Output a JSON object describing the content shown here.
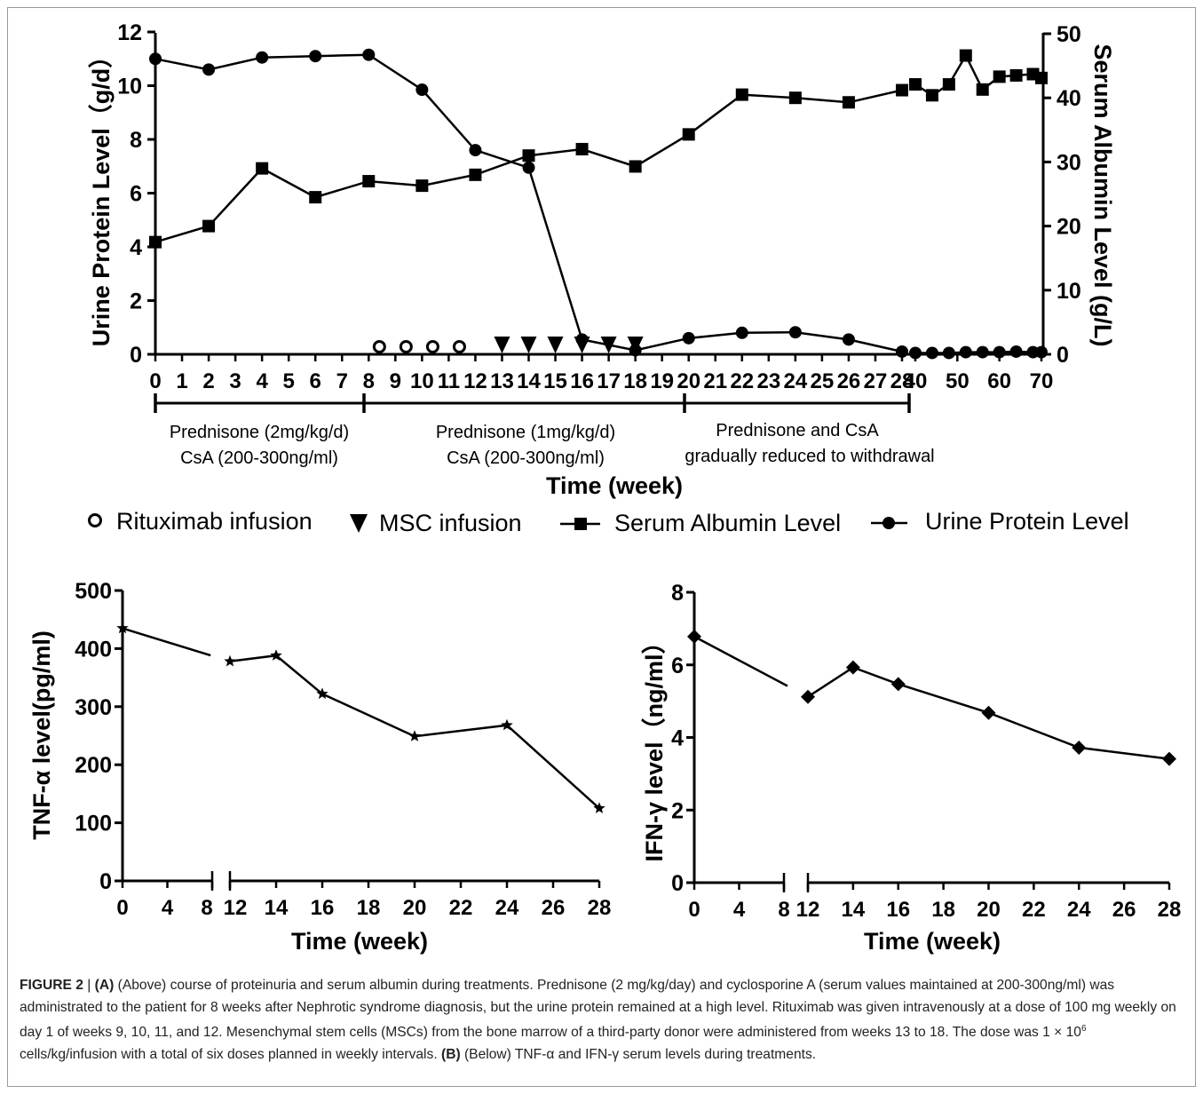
{
  "panel_a": {
    "y_left_label": "Urine Protein Level（g/d）",
    "y_right_label": "Serum Albumin Level (g/L)",
    "x_label": "Time (week)",
    "x_ticks": [
      "0",
      "1",
      "2",
      "3",
      "4",
      "5",
      "6",
      "7",
      "8",
      "9",
      "10",
      "11",
      "12",
      "13",
      "14",
      "15",
      "16",
      "17",
      "18",
      "19",
      "20",
      "21",
      "22",
      "23",
      "24",
      "25",
      "26",
      "27",
      "28",
      "40",
      "50",
      "60",
      "70"
    ],
    "y_left_ticks": [
      "0",
      "2",
      "4",
      "6",
      "8",
      "10",
      "12"
    ],
    "y_right_ticks": [
      "0",
      "10",
      "20",
      "30",
      "40",
      "50"
    ],
    "phases": [
      {
        "line1": "Prednisone (2mg/kg/d)",
        "line2": "CsA (200-300ng/ml)"
      },
      {
        "line1": "Prednisone (1mg/kg/d)",
        "line2": "CsA (200-300ng/ml)"
      },
      {
        "line1": "Prednisone and CsA",
        "line2": "gradually reduced to withdrawal"
      }
    ],
    "legend": [
      "Rituximab infusion",
      "MSC infusion",
      "Serum Albumin Level",
      "Urine Protein Level"
    ]
  },
  "panel_b1": {
    "y_label": "TNF-α level(pg/ml)",
    "x_label": "Time (week)",
    "y_ticks": [
      "0",
      "100",
      "200",
      "300",
      "400",
      "500"
    ],
    "x_ticks_before": [
      "0",
      "4",
      "8"
    ],
    "x_ticks_after": [
      "12",
      "14",
      "16",
      "18",
      "20",
      "22",
      "24",
      "26",
      "28"
    ]
  },
  "panel_b2": {
    "y_label": "IFN-γ level（ng/ml）",
    "x_label": "Time (week)",
    "y_ticks": [
      "0",
      "2",
      "4",
      "6",
      "8"
    ],
    "x_ticks_before": [
      "0",
      "4",
      "8"
    ],
    "x_ticks_after": [
      "12",
      "14",
      "16",
      "18",
      "20",
      "22",
      "24",
      "26",
      "28"
    ]
  },
  "caption": {
    "fig_label": "FIGURE 2",
    "sep": " | ",
    "a_tag": "(A)",
    "text_a": " (Above) course of proteinuria and serum albumin during treatments. Prednisone (2 mg/kg/day) and cyclosporine A (serum values maintained at 200-300ng/ml) was administrated to the patient for 8 weeks after Nephrotic syndrome diagnosis, but the urine protein remained at a high level. Rituximab was given intravenously at a dose of 100 mg weekly on day 1 of weeks 9, 10, 11, and 12. Mesenchymal stem cells (MSCs) from the bone marrow of a third-party donor were administered from weeks 13 to 18. The dose was 1 × 10",
    "sup": "6",
    "text_a2": " cells/kg/infusion with a total of six doses planned in weekly intervals. ",
    "b_tag": "(B)",
    "text_b": " (Below) TNF-α and IFN-γ serum levels during treatments."
  },
  "chart_data": [
    {
      "type": "line",
      "x_axis": "Time (week)",
      "ylabel": "Urine Protein Level（g/d）",
      "ylim": [
        0,
        12
      ],
      "y2label": "Serum Albumin Level (g/L)",
      "y2lim": [
        0,
        50
      ],
      "series": [
        {
          "name": "Urine Protein Level",
          "axis": "left",
          "x": [
            0,
            2,
            4,
            6,
            8,
            10,
            12,
            14,
            16,
            18,
            20,
            22,
            24,
            26,
            28,
            40,
            44,
            48,
            52,
            56,
            60,
            64,
            68,
            70
          ],
          "values": [
            11.0,
            10.6,
            11.05,
            11.1,
            11.15,
            9.85,
            7.6,
            6.95,
            0.55,
            0.15,
            0.6,
            0.8,
            0.82,
            0.55,
            0.1,
            0.05,
            0.05,
            0.05,
            0.08,
            0.08,
            0.08,
            0.1,
            0.08,
            0.08
          ]
        },
        {
          "name": "Serum Albumin Level",
          "axis": "right",
          "x": [
            0,
            2,
            4,
            6,
            8,
            10,
            12,
            14,
            16,
            18,
            20,
            22,
            24,
            26,
            28,
            40,
            44,
            48,
            52,
            56,
            60,
            64,
            68,
            70
          ],
          "values": [
            17.5,
            20.0,
            29.0,
            24.5,
            27.0,
            26.3,
            28.0,
            31.0,
            32.0,
            29.3,
            34.3,
            40.5,
            40.0,
            39.3,
            41.2,
            42.1,
            40.4,
            42.1,
            46.6,
            41.3,
            43.3,
            43.5,
            43.7,
            43.1
          ]
        },
        {
          "name": "Rituximab infusion",
          "x": [
            9,
            10,
            11,
            12
          ],
          "values": [
            0.25,
            0.25,
            0.25,
            0.25
          ]
        },
        {
          "name": "MSC infusion",
          "x": [
            13,
            14,
            15,
            16,
            17,
            18
          ],
          "values": [
            0.1,
            0.1,
            0.1,
            0.1,
            0.1,
            0.1
          ]
        }
      ]
    },
    {
      "type": "line",
      "xlabel": "Time (week)",
      "ylabel": "TNF-α level(pg/ml)",
      "ylim": [
        0,
        500
      ],
      "axis_break": [
        8,
        12
      ],
      "series": [
        {
          "x": [
            0,
            12,
            14,
            16,
            20,
            24,
            28
          ],
          "values": [
            435,
            378,
            388,
            322,
            249,
            268,
            125
          ]
        }
      ]
    },
    {
      "type": "line",
      "xlabel": "Time (week)",
      "ylabel": "IFN-γ level（ng/ml）",
      "ylim": [
        0,
        8
      ],
      "axis_break": [
        8,
        12
      ],
      "series": [
        {
          "x": [
            0,
            12,
            14,
            16,
            20,
            24,
            28
          ],
          "values": [
            6.78,
            5.12,
            5.93,
            5.47,
            4.68,
            3.72,
            3.41
          ]
        }
      ]
    }
  ]
}
